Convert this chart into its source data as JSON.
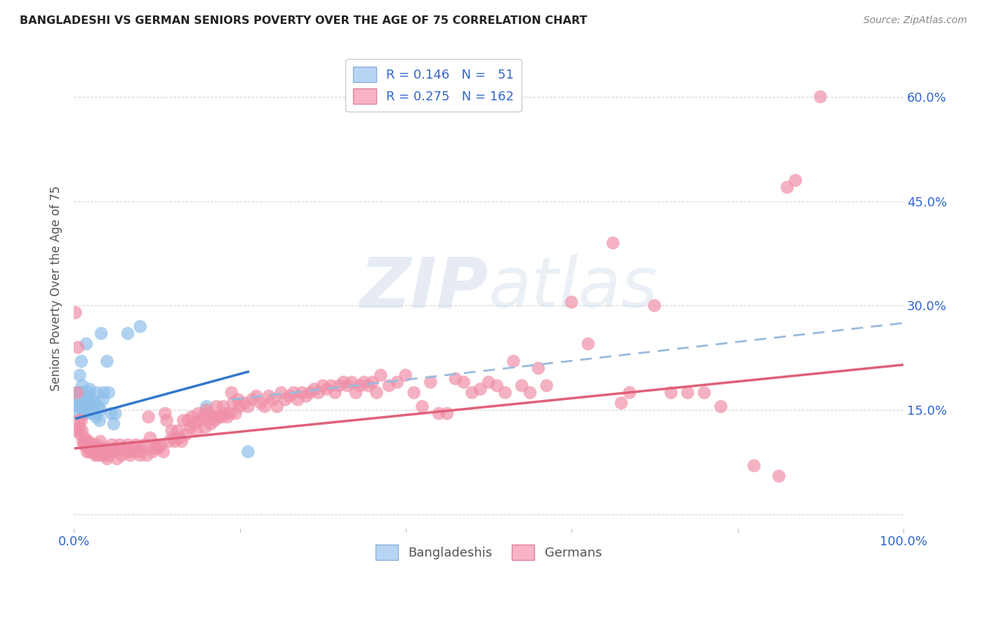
{
  "title": "BANGLADESHI VS GERMAN SENIORS POVERTY OVER THE AGE OF 75 CORRELATION CHART",
  "source": "Source: ZipAtlas.com",
  "ylabel": "Seniors Poverty Over the Age of 75",
  "xlim": [
    0.0,
    1.0
  ],
  "ylim": [
    -0.02,
    0.67
  ],
  "xticks": [
    0.0,
    0.2,
    0.4,
    0.6,
    0.8,
    1.0
  ],
  "xticklabels": [
    "0.0%",
    "",
    "",
    "",
    "",
    "100.0%"
  ],
  "yticks": [
    0.0,
    0.15,
    0.3,
    0.45,
    0.6
  ],
  "yticklabels_right": [
    "",
    "15.0%",
    "30.0%",
    "45.0%",
    "60.0%"
  ],
  "bangladeshi_color": "#8fc0ea",
  "german_color": "#f090a8",
  "bangladeshi_trend_color": "#3377cc",
  "german_trend_color": "#e0607a",
  "dashed_trend_color": "#99bbdd",
  "watermark_text": "ZIPatlas",
  "bangladeshi_points": [
    [
      0.003,
      0.175
    ],
    [
      0.004,
      0.155
    ],
    [
      0.005,
      0.175
    ],
    [
      0.005,
      0.165
    ],
    [
      0.006,
      0.145
    ],
    [
      0.006,
      0.175
    ],
    [
      0.007,
      0.2
    ],
    [
      0.007,
      0.155
    ],
    [
      0.008,
      0.165
    ],
    [
      0.008,
      0.175
    ],
    [
      0.009,
      0.22
    ],
    [
      0.009,
      0.155
    ],
    [
      0.01,
      0.155
    ],
    [
      0.01,
      0.185
    ],
    [
      0.011,
      0.165
    ],
    [
      0.011,
      0.155
    ],
    [
      0.012,
      0.175
    ],
    [
      0.012,
      0.145
    ],
    [
      0.013,
      0.155
    ],
    [
      0.013,
      0.165
    ],
    [
      0.014,
      0.145
    ],
    [
      0.015,
      0.245
    ],
    [
      0.015,
      0.155
    ],
    [
      0.016,
      0.155
    ],
    [
      0.016,
      0.165
    ],
    [
      0.017,
      0.155
    ],
    [
      0.018,
      0.175
    ],
    [
      0.019,
      0.18
    ],
    [
      0.02,
      0.155
    ],
    [
      0.021,
      0.145
    ],
    [
      0.022,
      0.165
    ],
    [
      0.023,
      0.155
    ],
    [
      0.025,
      0.16
    ],
    [
      0.026,
      0.145
    ],
    [
      0.027,
      0.14
    ],
    [
      0.028,
      0.175
    ],
    [
      0.03,
      0.155
    ],
    [
      0.031,
      0.135
    ],
    [
      0.032,
      0.15
    ],
    [
      0.033,
      0.26
    ],
    [
      0.035,
      0.165
    ],
    [
      0.036,
      0.175
    ],
    [
      0.04,
      0.22
    ],
    [
      0.042,
      0.175
    ],
    [
      0.045,
      0.145
    ],
    [
      0.048,
      0.13
    ],
    [
      0.05,
      0.145
    ],
    [
      0.065,
      0.26
    ],
    [
      0.08,
      0.27
    ],
    [
      0.16,
      0.155
    ],
    [
      0.21,
      0.09
    ]
  ],
  "german_points": [
    [
      0.002,
      0.29
    ],
    [
      0.003,
      0.12
    ],
    [
      0.004,
      0.175
    ],
    [
      0.005,
      0.24
    ],
    [
      0.006,
      0.135
    ],
    [
      0.007,
      0.125
    ],
    [
      0.008,
      0.115
    ],
    [
      0.009,
      0.135
    ],
    [
      0.01,
      0.12
    ],
    [
      0.011,
      0.105
    ],
    [
      0.012,
      0.1
    ],
    [
      0.013,
      0.11
    ],
    [
      0.014,
      0.1
    ],
    [
      0.015,
      0.105
    ],
    [
      0.016,
      0.09
    ],
    [
      0.017,
      0.095
    ],
    [
      0.018,
      0.105
    ],
    [
      0.019,
      0.09
    ],
    [
      0.02,
      0.1
    ],
    [
      0.021,
      0.095
    ],
    [
      0.022,
      0.1
    ],
    [
      0.023,
      0.095
    ],
    [
      0.024,
      0.09
    ],
    [
      0.025,
      0.09
    ],
    [
      0.026,
      0.085
    ],
    [
      0.027,
      0.095
    ],
    [
      0.028,
      0.1
    ],
    [
      0.029,
      0.085
    ],
    [
      0.03,
      0.09
    ],
    [
      0.032,
      0.105
    ],
    [
      0.034,
      0.085
    ],
    [
      0.035,
      0.09
    ],
    [
      0.036,
      0.085
    ],
    [
      0.037,
      0.09
    ],
    [
      0.038,
      0.095
    ],
    [
      0.04,
      0.08
    ],
    [
      0.042,
      0.085
    ],
    [
      0.044,
      0.09
    ],
    [
      0.046,
      0.1
    ],
    [
      0.048,
      0.09
    ],
    [
      0.05,
      0.095
    ],
    [
      0.052,
      0.08
    ],
    [
      0.055,
      0.1
    ],
    [
      0.058,
      0.085
    ],
    [
      0.06,
      0.095
    ],
    [
      0.062,
      0.09
    ],
    [
      0.065,
      0.1
    ],
    [
      0.068,
      0.085
    ],
    [
      0.07,
      0.09
    ],
    [
      0.072,
      0.095
    ],
    [
      0.075,
      0.1
    ],
    [
      0.078,
      0.09
    ],
    [
      0.08,
      0.085
    ],
    [
      0.082,
      0.095
    ],
    [
      0.085,
      0.1
    ],
    [
      0.088,
      0.085
    ],
    [
      0.09,
      0.14
    ],
    [
      0.092,
      0.11
    ],
    [
      0.095,
      0.09
    ],
    [
      0.098,
      0.095
    ],
    [
      0.1,
      0.1
    ],
    [
      0.102,
      0.095
    ],
    [
      0.105,
      0.1
    ],
    [
      0.108,
      0.09
    ],
    [
      0.11,
      0.145
    ],
    [
      0.112,
      0.135
    ],
    [
      0.115,
      0.105
    ],
    [
      0.118,
      0.12
    ],
    [
      0.12,
      0.11
    ],
    [
      0.122,
      0.105
    ],
    [
      0.125,
      0.12
    ],
    [
      0.128,
      0.11
    ],
    [
      0.13,
      0.105
    ],
    [
      0.132,
      0.135
    ],
    [
      0.135,
      0.115
    ],
    [
      0.138,
      0.135
    ],
    [
      0.14,
      0.125
    ],
    [
      0.142,
      0.14
    ],
    [
      0.145,
      0.13
    ],
    [
      0.148,
      0.12
    ],
    [
      0.15,
      0.145
    ],
    [
      0.152,
      0.135
    ],
    [
      0.155,
      0.14
    ],
    [
      0.158,
      0.125
    ],
    [
      0.16,
      0.15
    ],
    [
      0.162,
      0.145
    ],
    [
      0.165,
      0.13
    ],
    [
      0.168,
      0.14
    ],
    [
      0.17,
      0.135
    ],
    [
      0.172,
      0.155
    ],
    [
      0.175,
      0.14
    ],
    [
      0.178,
      0.14
    ],
    [
      0.18,
      0.155
    ],
    [
      0.182,
      0.145
    ],
    [
      0.185,
      0.14
    ],
    [
      0.188,
      0.145
    ],
    [
      0.19,
      0.175
    ],
    [
      0.192,
      0.16
    ],
    [
      0.195,
      0.145
    ],
    [
      0.198,
      0.165
    ],
    [
      0.2,
      0.155
    ],
    [
      0.205,
      0.16
    ],
    [
      0.21,
      0.155
    ],
    [
      0.215,
      0.165
    ],
    [
      0.22,
      0.17
    ],
    [
      0.225,
      0.16
    ],
    [
      0.23,
      0.155
    ],
    [
      0.235,
      0.17
    ],
    [
      0.24,
      0.165
    ],
    [
      0.245,
      0.155
    ],
    [
      0.25,
      0.175
    ],
    [
      0.255,
      0.165
    ],
    [
      0.26,
      0.17
    ],
    [
      0.265,
      0.175
    ],
    [
      0.27,
      0.165
    ],
    [
      0.275,
      0.175
    ],
    [
      0.28,
      0.17
    ],
    [
      0.285,
      0.175
    ],
    [
      0.29,
      0.18
    ],
    [
      0.295,
      0.175
    ],
    [
      0.3,
      0.185
    ],
    [
      0.305,
      0.18
    ],
    [
      0.31,
      0.185
    ],
    [
      0.315,
      0.175
    ],
    [
      0.32,
      0.185
    ],
    [
      0.325,
      0.19
    ],
    [
      0.33,
      0.185
    ],
    [
      0.335,
      0.19
    ],
    [
      0.34,
      0.175
    ],
    [
      0.345,
      0.185
    ],
    [
      0.35,
      0.19
    ],
    [
      0.355,
      0.185
    ],
    [
      0.36,
      0.19
    ],
    [
      0.365,
      0.175
    ],
    [
      0.37,
      0.2
    ],
    [
      0.38,
      0.185
    ],
    [
      0.39,
      0.19
    ],
    [
      0.4,
      0.2
    ],
    [
      0.41,
      0.175
    ],
    [
      0.42,
      0.155
    ],
    [
      0.43,
      0.19
    ],
    [
      0.44,
      0.145
    ],
    [
      0.45,
      0.145
    ],
    [
      0.46,
      0.195
    ],
    [
      0.47,
      0.19
    ],
    [
      0.48,
      0.175
    ],
    [
      0.49,
      0.18
    ],
    [
      0.5,
      0.19
    ],
    [
      0.51,
      0.185
    ],
    [
      0.52,
      0.175
    ],
    [
      0.53,
      0.22
    ],
    [
      0.54,
      0.185
    ],
    [
      0.55,
      0.175
    ],
    [
      0.56,
      0.21
    ],
    [
      0.57,
      0.185
    ],
    [
      0.6,
      0.305
    ],
    [
      0.62,
      0.245
    ],
    [
      0.65,
      0.39
    ],
    [
      0.66,
      0.16
    ],
    [
      0.67,
      0.175
    ],
    [
      0.7,
      0.3
    ],
    [
      0.72,
      0.175
    ],
    [
      0.74,
      0.175
    ],
    [
      0.76,
      0.175
    ],
    [
      0.78,
      0.155
    ],
    [
      0.82,
      0.07
    ],
    [
      0.85,
      0.055
    ],
    [
      0.9,
      0.6
    ],
    [
      0.86,
      0.47
    ],
    [
      0.87,
      0.48
    ]
  ],
  "bd_trend_x": [
    0.003,
    0.21
  ],
  "bd_trend_y": [
    0.138,
    0.205
  ],
  "de_trend_x": [
    0.002,
    1.0
  ],
  "de_trend_y": [
    0.095,
    0.215
  ],
  "dash_trend_x": [
    0.19,
    1.0
  ],
  "dash_trend_y": [
    0.165,
    0.275
  ]
}
